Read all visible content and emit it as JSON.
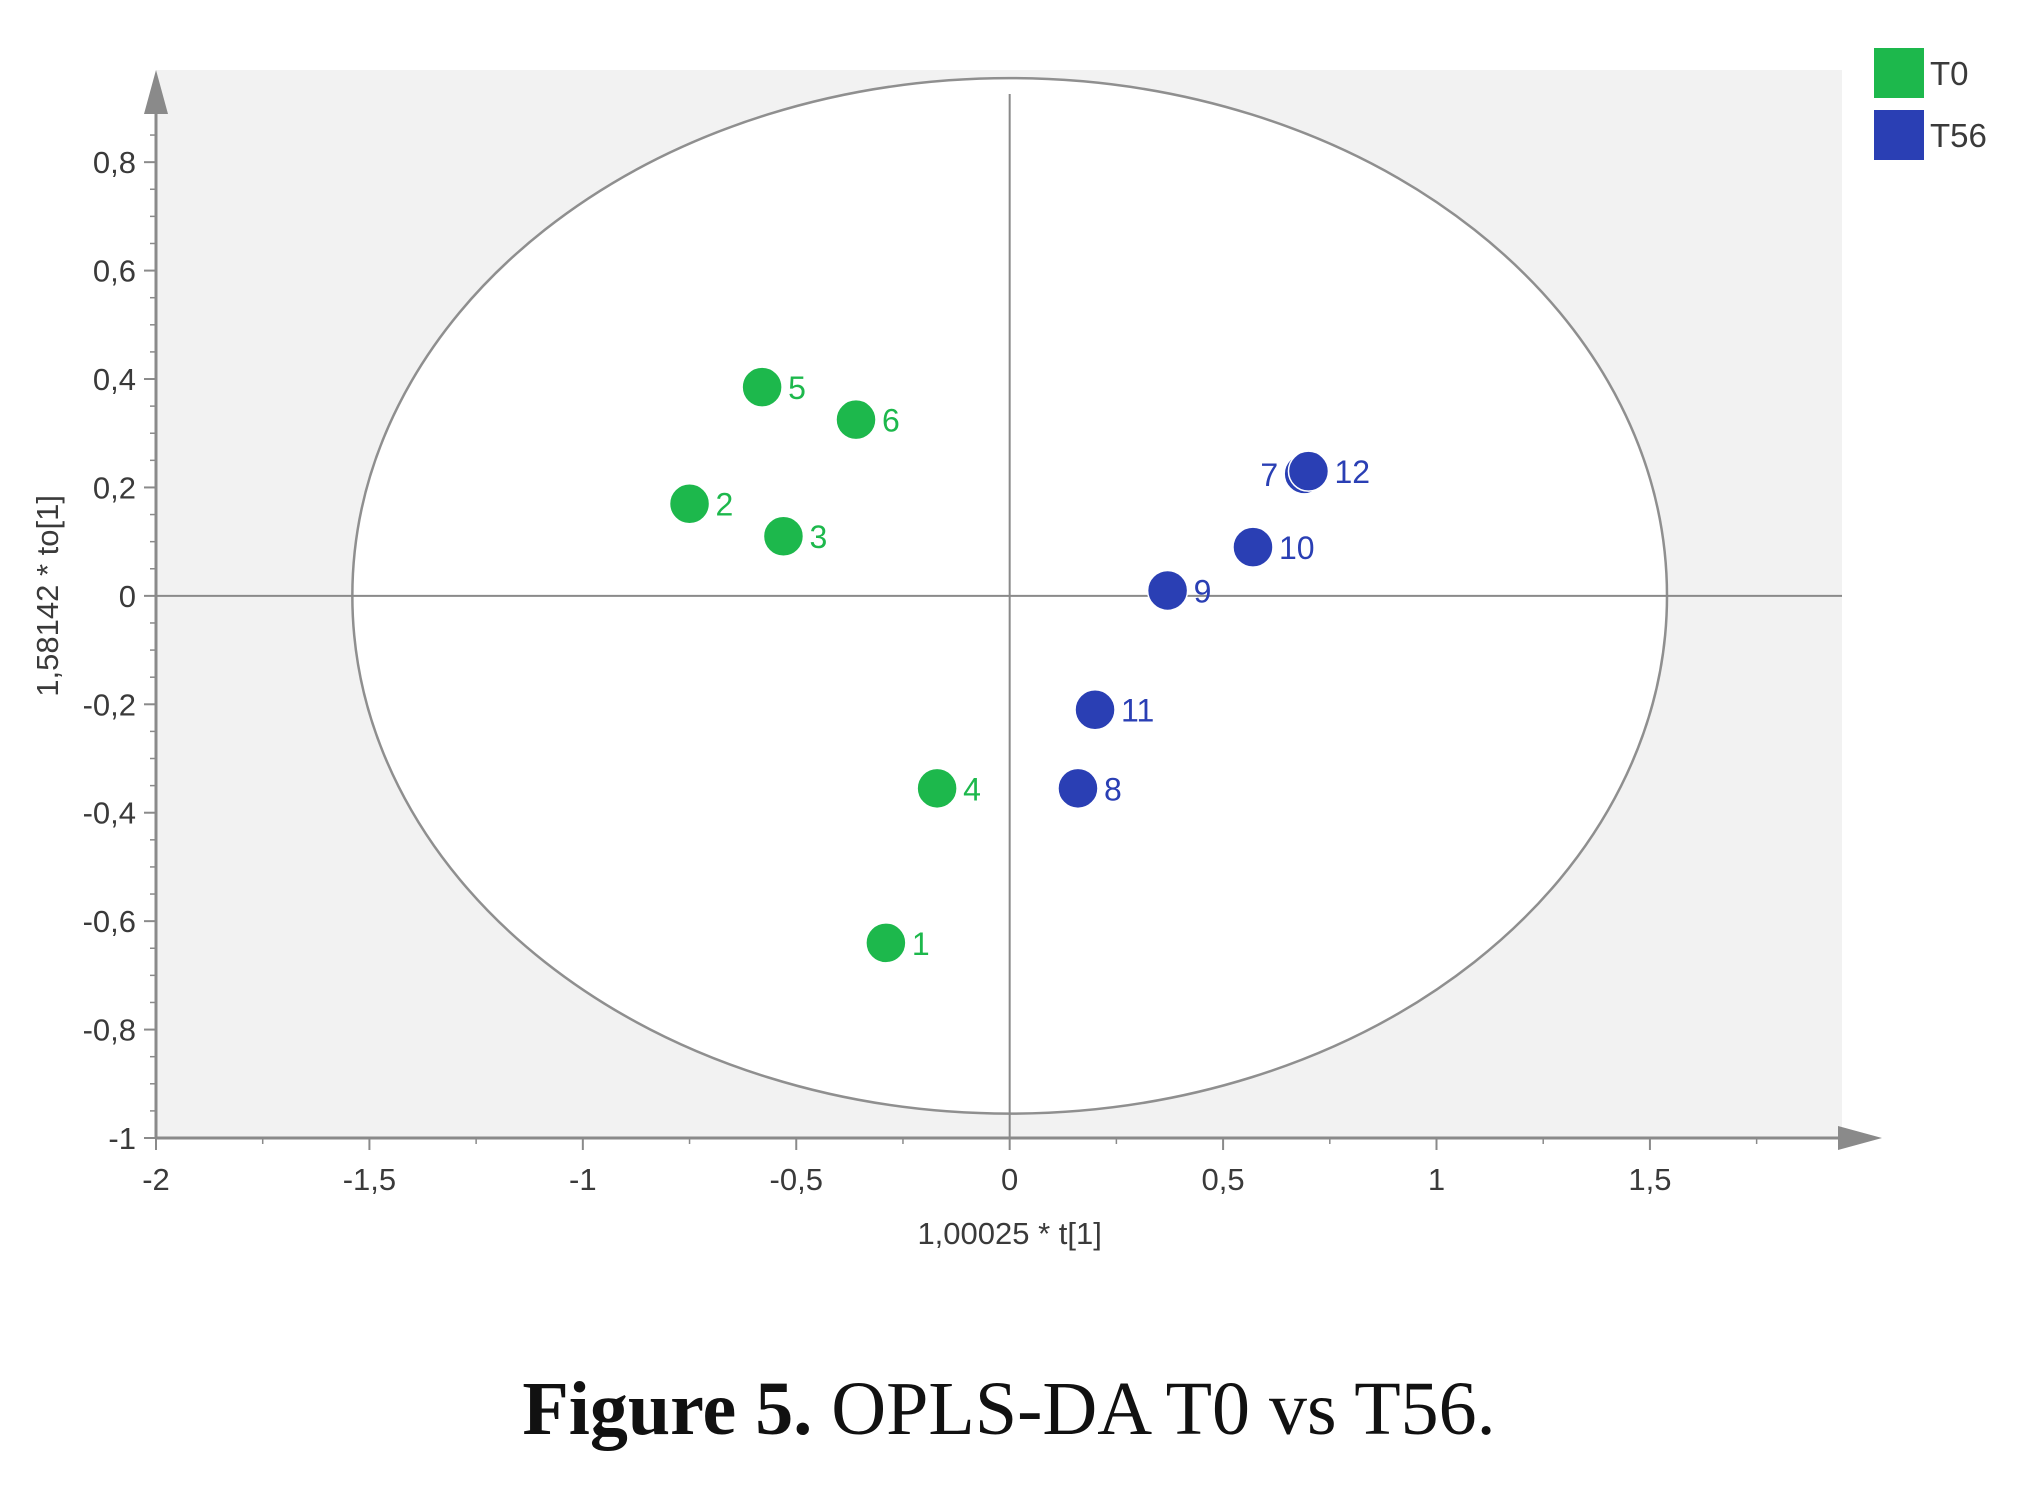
{
  "caption": {
    "label": "Figure 5.",
    "text": "OPLS-DA T0 vs T56."
  },
  "chart_data": {
    "type": "scatter",
    "xlabel": "1,00025 * t[1]",
    "ylabel": "1,58142 * to[1]",
    "xlim": [
      -2,
      1.95
    ],
    "ylim": [
      -1,
      0.97
    ],
    "x_ticks": [
      "-2",
      "-1,5",
      "-1",
      "-0,5",
      "0",
      "0,5",
      "1",
      "1,5"
    ],
    "x_tick_values": [
      -2,
      -1.5,
      -1,
      -0.5,
      0,
      0.5,
      1,
      1.5
    ],
    "y_ticks": [
      "0,8",
      "0,6",
      "0,4",
      "0,2",
      "0",
      "-0,2",
      "-0,4",
      "-0,6",
      "-0,8",
      "-1"
    ],
    "y_tick_values": [
      0.8,
      0.6,
      0.4,
      0.2,
      0,
      -0.2,
      -0.4,
      -0.6,
      -0.8,
      -1
    ],
    "ellipse": {
      "cx": 0,
      "cy": 0,
      "rx": 1.54,
      "ry": 0.955
    },
    "grid": false,
    "legend_position": "top-right",
    "series": [
      {
        "name": "T0",
        "color": "#1db84c",
        "points": [
          {
            "label": "1",
            "x": -0.29,
            "y": -0.64
          },
          {
            "label": "2",
            "x": -0.75,
            "y": 0.17
          },
          {
            "label": "3",
            "x": -0.53,
            "y": 0.11
          },
          {
            "label": "4",
            "x": -0.17,
            "y": -0.355
          },
          {
            "label": "5",
            "x": -0.58,
            "y": 0.385
          },
          {
            "label": "6",
            "x": -0.36,
            "y": 0.325
          }
        ]
      },
      {
        "name": "T56",
        "color": "#2a3fb4",
        "points": [
          {
            "label": "7",
            "x": 0.69,
            "y": 0.225
          },
          {
            "label": "8",
            "x": 0.16,
            "y": -0.355
          },
          {
            "label": "9",
            "x": 0.37,
            "y": 0.01
          },
          {
            "label": "10",
            "x": 0.57,
            "y": 0.09
          },
          {
            "label": "11",
            "x": 0.2,
            "y": -0.21
          },
          {
            "label": "12",
            "x": 0.7,
            "y": 0.23
          }
        ]
      }
    ]
  }
}
